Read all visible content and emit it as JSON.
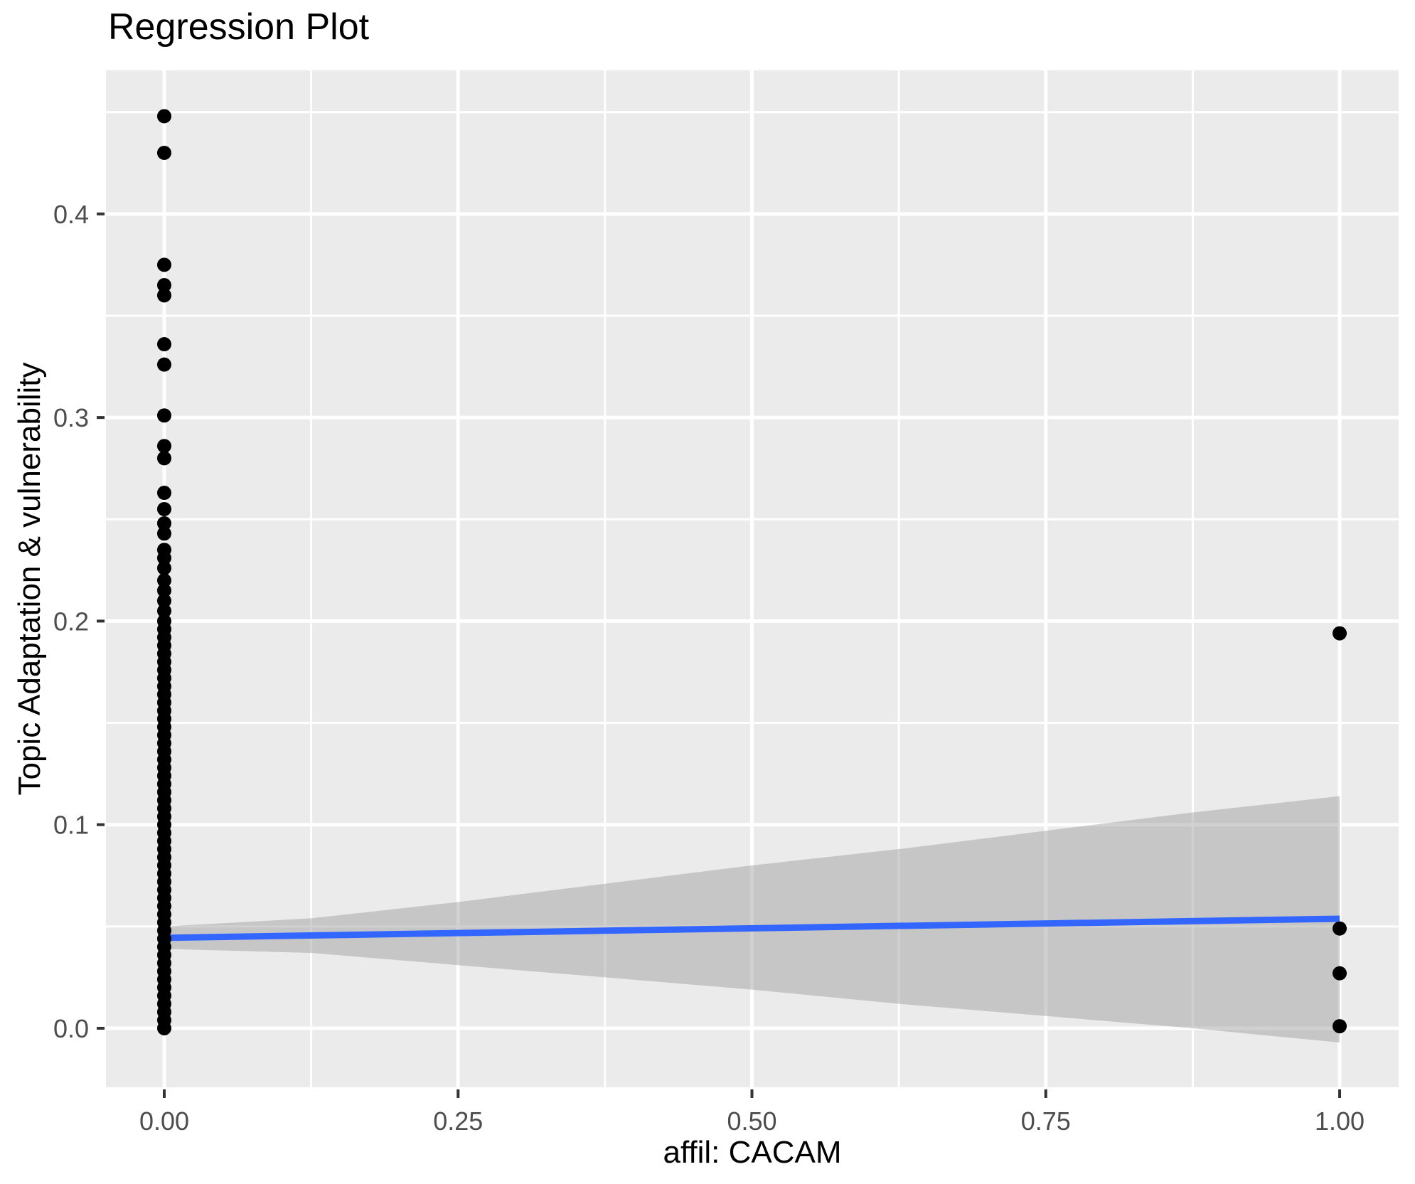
{
  "title": "Regression Plot",
  "chart_data": {
    "type": "scatter",
    "title": "Regression Plot",
    "xlabel": "affil: CACAM",
    "ylabel": "Topic Adaptation & vulnerability",
    "xlim": [
      -0.0496,
      1.0502
    ],
    "ylim": [
      -0.029,
      0.4705
    ],
    "grid": true,
    "legend": false,
    "x_ticks": {
      "values": [
        0,
        0.25,
        0.5,
        0.75,
        1
      ],
      "labels": [
        "0.00",
        "0.25",
        "0.50",
        "0.75",
        "1.00"
      ],
      "minor": [
        0.125,
        0.375,
        0.625,
        0.875
      ]
    },
    "y_ticks": {
      "values": [
        0,
        0.1,
        0.2,
        0.3,
        0.4
      ],
      "labels": [
        "0.0",
        "0.1",
        "0.2",
        "0.3",
        "0.4"
      ],
      "minor": [
        0.05,
        0.15,
        0.25,
        0.35,
        0.45
      ]
    },
    "series": [
      {
        "name": "observations_x0",
        "x": 0,
        "y": [
          0.0,
          0.004,
          0.008,
          0.012,
          0.016,
          0.02,
          0.024,
          0.028,
          0.032,
          0.036,
          0.04,
          0.044,
          0.048,
          0.052,
          0.056,
          0.06,
          0.064,
          0.068,
          0.072,
          0.076,
          0.08,
          0.084,
          0.088,
          0.092,
          0.096,
          0.1,
          0.104,
          0.108,
          0.112,
          0.116,
          0.12,
          0.124,
          0.128,
          0.132,
          0.136,
          0.14,
          0.144,
          0.148,
          0.152,
          0.156,
          0.16,
          0.164,
          0.168,
          0.172,
          0.176,
          0.18,
          0.184,
          0.188,
          0.192,
          0.196,
          0.2,
          0.205,
          0.21,
          0.215,
          0.22,
          0.226,
          0.231,
          0.235,
          0.243,
          0.248,
          0.255,
          0.263,
          0.28,
          0.286,
          0.301,
          0.326,
          0.336,
          0.36,
          0.365,
          0.375,
          0.43,
          0.448
        ]
      },
      {
        "name": "observations_x1",
        "x": 1,
        "y": [
          0.194,
          0.049,
          0.027,
          0.001
        ]
      }
    ],
    "regression_line": {
      "x": [
        0,
        1
      ],
      "y": [
        0.0444,
        0.0538
      ]
    },
    "confidence_band": {
      "x": [
        0,
        0.125,
        0.25,
        0.375,
        0.5,
        0.625,
        0.75,
        0.875,
        1
      ],
      "upper": [
        0.05,
        0.054,
        0.062,
        0.071,
        0.08,
        0.088,
        0.097,
        0.106,
        0.114
      ],
      "lower": [
        0.039,
        0.037,
        0.031,
        0.025,
        0.019,
        0.012,
        0.006,
        0.0,
        -0.007
      ]
    },
    "colors": {
      "panel_bg": "#EBEBEB",
      "grid": "#FFFFFF",
      "point": "#000000",
      "line": "#3366FF",
      "band": "#999999",
      "band_opacity": 0.45,
      "tick_mark": "#333333",
      "tick_label": "#4D4D4D",
      "title_text": "#000000"
    }
  }
}
